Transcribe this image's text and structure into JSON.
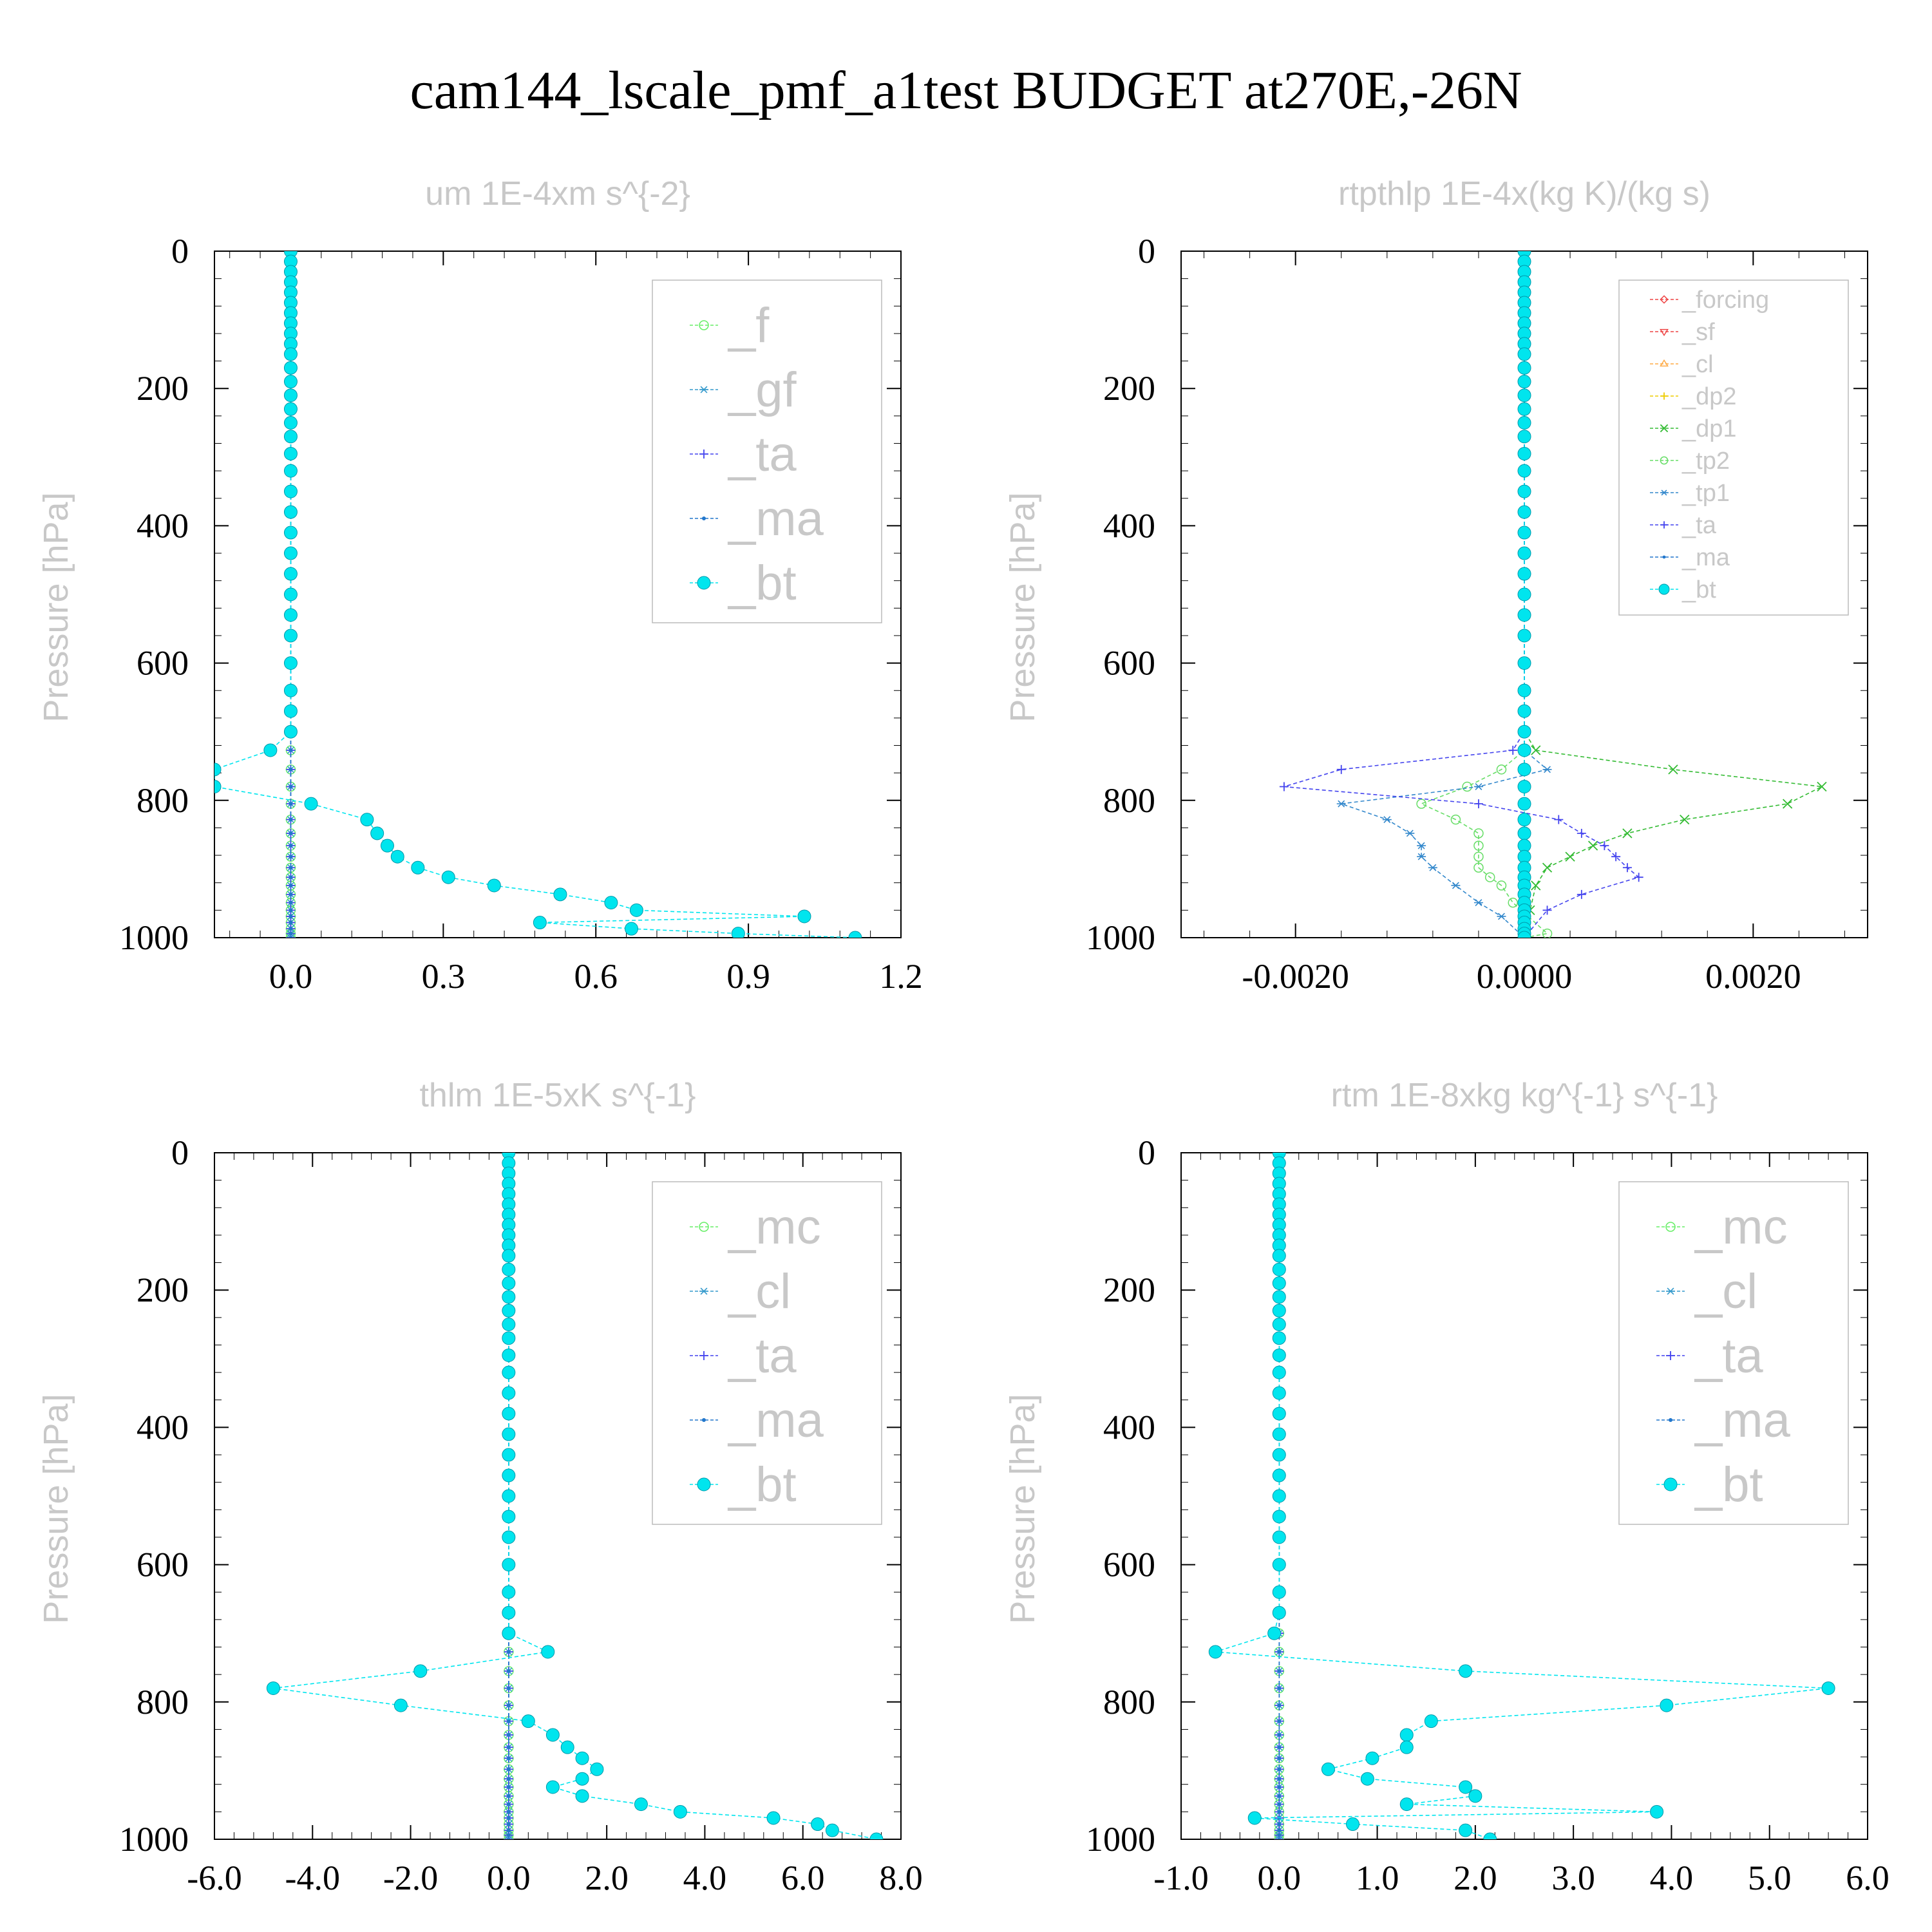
{
  "figure_title": "cam144_lscale_pmf_a1test  BUDGET at270E,-26N",
  "ylabel": "Pressure [hPa]",
  "y_ticks": [
    "0",
    "200",
    "400",
    "600",
    "800",
    "1000"
  ],
  "chart_data": [
    {
      "type": "line",
      "title": "um  1E-4xm s^{-2}",
      "ylabel": "Pressure [hPa]",
      "xlim": [
        -0.15,
        1.2
      ],
      "ylim": [
        1000,
        0
      ],
      "x_ticks": [
        0.0,
        0.3,
        0.6,
        0.9,
        1.2
      ],
      "x_tick_labels": [
        "0.0",
        "0.3",
        "0.6",
        "0.9",
        "1.2"
      ],
      "legend": {
        "position": "top-right",
        "entries": [
          "_f",
          "_gf",
          "_ta",
          "_ma",
          "_bt"
        ]
      },
      "series": [
        {
          "name": "_f",
          "color": "#66ee66",
          "marker": "circle-open",
          "mode": "zero"
        },
        {
          "name": "_gf",
          "color": "#3399cc",
          "marker": "asterisk",
          "mode": "zero"
        },
        {
          "name": "_ta",
          "color": "#4444ee",
          "marker": "plus",
          "mode": "zero"
        },
        {
          "name": "_ma",
          "color": "#2277cc",
          "marker": "dot",
          "mode": "zero"
        },
        {
          "name": "_bt",
          "color": "#00e5ee",
          "marker": "dot-big",
          "x": [
            -0.04,
            -0.15,
            -0.15,
            0.04,
            0.15,
            0.17,
            0.19,
            0.21,
            0.25,
            0.31,
            0.4,
            0.53,
            0.63,
            0.68,
            1.01,
            0.49,
            0.67,
            0.88,
            1.11
          ],
          "y": [
            727,
            755,
            780,
            805,
            828,
            848,
            866,
            882,
            898,
            912,
            924,
            937,
            949,
            960,
            969,
            978,
            987,
            994,
            1000
          ]
        }
      ]
    },
    {
      "type": "line",
      "title": "rtpthlp  1E-4x(kg K)/(kg s)",
      "ylabel": "Pressure [hPa]",
      "xlim": [
        -0.003,
        0.003
      ],
      "ylim": [
        1000,
        0
      ],
      "x_ticks": [
        -0.002,
        0.0,
        0.002
      ],
      "x_tick_labels": [
        "-0.0020",
        "0.0000",
        "0.0020"
      ],
      "legend": {
        "position": "top-right",
        "entries": [
          "_forcing",
          "_sf",
          "_cl",
          "_dp2",
          "_dp1",
          "_tp2",
          "_tp1",
          "_ta",
          "_ma",
          "_bt"
        ]
      },
      "series": [
        {
          "name": "_forcing",
          "color": "#ee4444",
          "marker": "diamond-open",
          "mode": "zero"
        },
        {
          "name": "_sf",
          "color": "#ee4444",
          "marker": "triangle-down",
          "mode": "zero"
        },
        {
          "name": "_cl",
          "color": "#ffaa44",
          "marker": "triangle-up",
          "mode": "zero"
        },
        {
          "name": "_dp2",
          "color": "#eecc00",
          "marker": "plus",
          "mode": "zero"
        },
        {
          "name": "_dp1",
          "color": "#33bb33",
          "marker": "cross",
          "x": [
            0.0001,
            0.0013,
            0.0026,
            0.0023,
            0.0014,
            0.0009,
            0.0006,
            0.0004,
            0.0002,
            0.0001,
            5e-05,
            0.0
          ],
          "y": [
            727,
            755,
            780,
            805,
            828,
            848,
            866,
            882,
            898,
            924,
            960,
            1000
          ]
        },
        {
          "name": "_tp2",
          "color": "#66dd66",
          "marker": "circle-open",
          "x": [
            -0.0002,
            -0.0005,
            -0.0009,
            -0.0006,
            -0.0004,
            -0.0004,
            -0.0004,
            -0.0004,
            -0.0003,
            -0.0002,
            -0.0001,
            0.0002,
            0.0
          ],
          "y": [
            755,
            780,
            805,
            828,
            848,
            866,
            882,
            898,
            912,
            924,
            949,
            994,
            1000
          ]
        },
        {
          "name": "_tp1",
          "color": "#3388cc",
          "marker": "asterisk",
          "x": [
            0.0002,
            -0.0004,
            -0.0016,
            -0.0012,
            -0.001,
            -0.0009,
            -0.0009,
            -0.0008,
            -0.0006,
            -0.0004,
            -0.0002,
            0.0
          ],
          "y": [
            755,
            780,
            805,
            828,
            848,
            866,
            882,
            898,
            924,
            949,
            969,
            1000
          ]
        },
        {
          "name": "_ta",
          "color": "#4444ee",
          "marker": "plus",
          "x": [
            -0.0001,
            -0.0016,
            -0.0021,
            -0.0004,
            0.0003,
            0.0005,
            0.0007,
            0.0008,
            0.0009,
            0.001,
            0.0005,
            0.0002,
            0.0
          ],
          "y": [
            727,
            755,
            780,
            805,
            828,
            848,
            866,
            882,
            898,
            912,
            937,
            960,
            1000
          ]
        },
        {
          "name": "_ma",
          "color": "#2277cc",
          "marker": "dot",
          "mode": "zero"
        },
        {
          "name": "_bt",
          "color": "#00e5ee",
          "marker": "dot-big",
          "mode": "zero"
        }
      ]
    },
    {
      "type": "line",
      "title": "thlm  1E-5xK s^{-1}",
      "ylabel": "Pressure [hPa]",
      "xlim": [
        -6.0,
        8.0
      ],
      "ylim": [
        1000,
        0
      ],
      "x_ticks": [
        -6.0,
        -4.0,
        -2.0,
        0.0,
        2.0,
        4.0,
        6.0,
        8.0
      ],
      "x_tick_labels": [
        "-6.0",
        "-4.0",
        "-2.0",
        "0.0",
        "2.0",
        "4.0",
        "6.0",
        "8.0"
      ],
      "legend": {
        "position": "top-right",
        "entries": [
          "_mc",
          "_cl",
          "_ta",
          "_ma",
          "_bt"
        ]
      },
      "series": [
        {
          "name": "_mc",
          "color": "#66ee66",
          "marker": "circle-open",
          "mode": "zero"
        },
        {
          "name": "_cl",
          "color": "#3399cc",
          "marker": "asterisk",
          "mode": "zero"
        },
        {
          "name": "_ta",
          "color": "#4444ee",
          "marker": "plus",
          "mode": "zero"
        },
        {
          "name": "_ma",
          "color": "#2277cc",
          "marker": "dot",
          "mode": "zero"
        },
        {
          "name": "_bt",
          "color": "#00e5ee",
          "marker": "dot-big",
          "x": [
            0.8,
            -1.8,
            -4.8,
            -2.2,
            0.4,
            0.9,
            1.2,
            1.5,
            1.8,
            1.5,
            0.9,
            1.5,
            2.7,
            3.5,
            5.4,
            6.3,
            6.6,
            7.5
          ],
          "y": [
            727,
            755,
            780,
            805,
            828,
            848,
            866,
            882,
            898,
            912,
            924,
            937,
            949,
            960,
            969,
            978,
            987,
            1000
          ]
        }
      ]
    },
    {
      "type": "line",
      "title": "rtm  1E-8xkg kg^{-1} s^{-1}",
      "ylabel": "Pressure [hPa]",
      "xlim": [
        -1.0,
        6.0
      ],
      "ylim": [
        1000,
        0
      ],
      "x_ticks": [
        -1.0,
        0.0,
        1.0,
        2.0,
        3.0,
        4.0,
        5.0,
        6.0
      ],
      "x_tick_labels": [
        "-1.0",
        "0.0",
        "1.0",
        "2.0",
        "3.0",
        "4.0",
        "5.0",
        "6.0"
      ],
      "legend": {
        "position": "top-right",
        "entries": [
          "_mc",
          "_cl",
          "_ta",
          "_ma",
          "_bt"
        ]
      },
      "series": [
        {
          "name": "_mc",
          "color": "#66ee66",
          "marker": "circle-open",
          "mode": "zero"
        },
        {
          "name": "_cl",
          "color": "#3399cc",
          "marker": "asterisk",
          "mode": "zero"
        },
        {
          "name": "_ta",
          "color": "#4444ee",
          "marker": "plus",
          "mode": "zero"
        },
        {
          "name": "_ma",
          "color": "#2277cc",
          "marker": "dot",
          "mode": "zero"
        },
        {
          "name": "_bt",
          "color": "#00e5ee",
          "marker": "dot-big",
          "x": [
            -0.05,
            -0.65,
            1.9,
            5.6,
            3.95,
            1.55,
            1.3,
            1.3,
            0.95,
            0.5,
            0.9,
            1.9,
            2.0,
            1.3,
            3.85,
            -0.25,
            0.75,
            1.9,
            2.15
          ],
          "y": [
            700,
            727,
            755,
            780,
            805,
            828,
            848,
            866,
            882,
            898,
            912,
            924,
            937,
            949,
            960,
            969,
            978,
            987,
            1000
          ]
        }
      ]
    }
  ]
}
